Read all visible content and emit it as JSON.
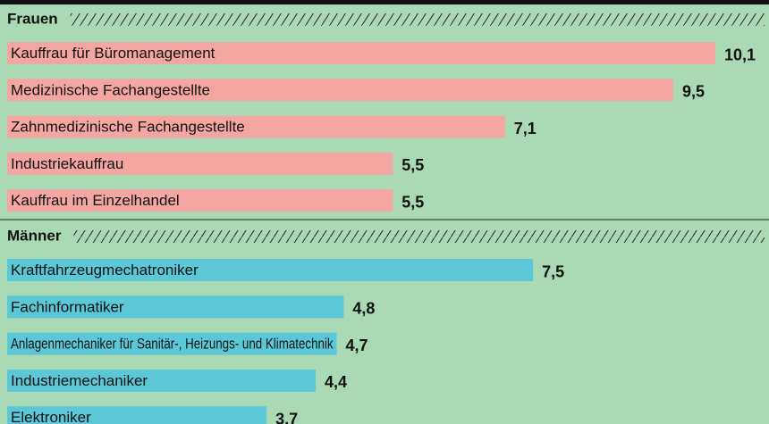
{
  "chart_data": [
    {
      "type": "bar",
      "title": "Frauen",
      "color": "#f4a7a1",
      "categories": [
        "Kauffrau für Büromanagement",
        "Medizinische Fachangestellte",
        "Zahnmedizinische Fachangestellte",
        "Industriekauffrau",
        "Kauffrau im Einzelhandel"
      ],
      "values": [
        10.1,
        9.5,
        7.1,
        5.5,
        5.5
      ],
      "value_labels": [
        "10,1",
        "9,5",
        "7,1",
        "5,5",
        "5,5"
      ]
    },
    {
      "type": "bar",
      "title": "Männer",
      "color": "#5cc8d7",
      "categories": [
        "Kraftfahrzeugmechatroniker",
        "Fachinformatiker",
        "Anlagenmechaniker für Sanitär-, Heizungs- und Klimatechnik",
        "Industriemechaniker",
        "Elektroniker"
      ],
      "values": [
        7.5,
        4.8,
        4.7,
        4.4,
        3.7
      ],
      "value_labels": [
        "7,5",
        "4,8",
        "4,7",
        "4,4",
        "3,7"
      ]
    }
  ]
}
